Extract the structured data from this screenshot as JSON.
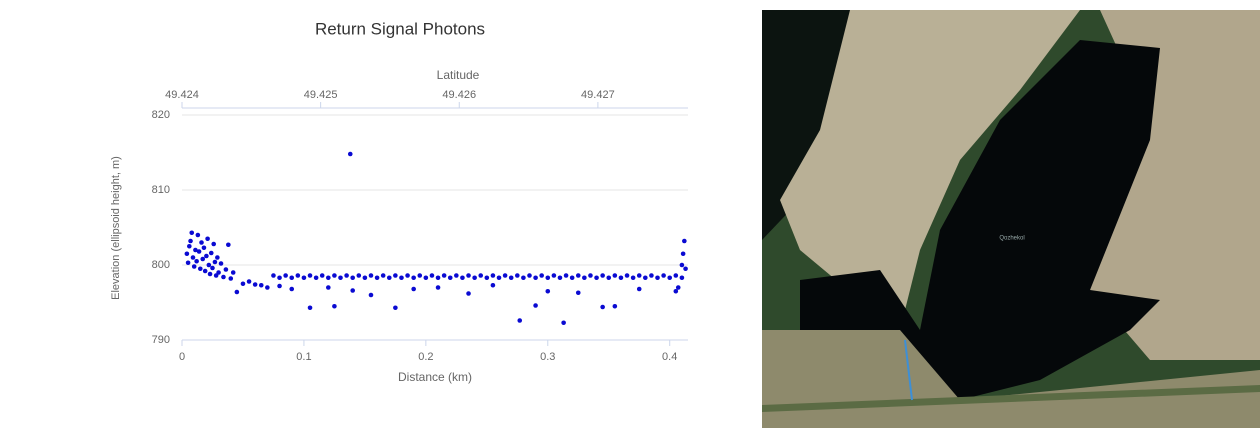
{
  "chart_data": {
    "type": "scatter",
    "title": "Return Signal Photons",
    "x_label": "Distance (km)",
    "y_label": "Elevation (ellipsoid height, m)",
    "x2_label": "Latitude",
    "color": "#0a0ad2",
    "grid": true,
    "xlim": [
      0,
      0.415
    ],
    "ylim": [
      790,
      820
    ],
    "xticks": [
      0,
      0.1,
      0.2,
      0.3,
      0.4
    ],
    "yticks": [
      790,
      800,
      810,
      820
    ],
    "x2lim": [
      49.424,
      49.42765
    ],
    "x2ticks": [
      49.424,
      49.425,
      49.426,
      49.427
    ],
    "x": [
      0.004,
      0.005,
      0.006,
      0.007,
      0.008,
      0.009,
      0.01,
      0.011,
      0.012,
      0.013,
      0.014,
      0.015,
      0.016,
      0.017,
      0.018,
      0.019,
      0.02,
      0.021,
      0.022,
      0.023,
      0.024,
      0.025,
      0.026,
      0.027,
      0.028,
      0.029,
      0.03,
      0.032,
      0.034,
      0.036,
      0.038,
      0.04,
      0.042,
      0.045,
      0.05,
      0.055,
      0.06,
      0.065,
      0.07,
      0.075,
      0.085,
      0.095,
      0.105,
      0.115,
      0.125,
      0.135,
      0.145,
      0.155,
      0.165,
      0.175,
      0.185,
      0.195,
      0.205,
      0.215,
      0.225,
      0.235,
      0.245,
      0.255,
      0.265,
      0.275,
      0.285,
      0.295,
      0.305,
      0.315,
      0.325,
      0.335,
      0.345,
      0.355,
      0.365,
      0.375,
      0.385,
      0.395,
      0.405,
      0.08,
      0.09,
      0.1,
      0.11,
      0.12,
      0.13,
      0.14,
      0.15,
      0.16,
      0.17,
      0.18,
      0.19,
      0.2,
      0.21,
      0.22,
      0.23,
      0.24,
      0.25,
      0.26,
      0.27,
      0.28,
      0.29,
      0.3,
      0.31,
      0.32,
      0.33,
      0.34,
      0.35,
      0.36,
      0.37,
      0.38,
      0.39,
      0.4,
      0.41,
      0.08,
      0.09,
      0.105,
      0.12,
      0.125,
      0.14,
      0.155,
      0.175,
      0.19,
      0.21,
      0.235,
      0.255,
      0.277,
      0.29,
      0.3,
      0.313,
      0.325,
      0.345,
      0.355,
      0.375,
      0.405,
      0.407,
      0.138,
      0.41,
      0.412,
      0.411,
      0.413
    ],
    "values": [
      801.5,
      800.3,
      802.5,
      803.2,
      804.3,
      801.0,
      799.8,
      802.0,
      800.5,
      804.0,
      801.8,
      799.5,
      803.0,
      800.8,
      802.3,
      799.2,
      801.2,
      803.5,
      800.0,
      798.8,
      801.6,
      799.6,
      802.8,
      800.4,
      798.6,
      801.0,
      799.0,
      800.2,
      798.4,
      799.4,
      802.7,
      798.2,
      799.0,
      796.4,
      797.5,
      797.8,
      797.4,
      797.3,
      797.0,
      798.6,
      798.6,
      798.6,
      798.6,
      798.6,
      798.6,
      798.6,
      798.6,
      798.6,
      798.6,
      798.6,
      798.6,
      798.6,
      798.6,
      798.6,
      798.6,
      798.6,
      798.6,
      798.6,
      798.6,
      798.6,
      798.6,
      798.6,
      798.6,
      798.6,
      798.6,
      798.6,
      798.6,
      798.6,
      798.6,
      798.6,
      798.6,
      798.6,
      798.6,
      798.3,
      798.3,
      798.3,
      798.3,
      798.3,
      798.3,
      798.3,
      798.3,
      798.3,
      798.3,
      798.3,
      798.3,
      798.3,
      798.3,
      798.3,
      798.3,
      798.3,
      798.3,
      798.3,
      798.3,
      798.3,
      798.3,
      798.3,
      798.3,
      798.3,
      798.3,
      798.3,
      798.3,
      798.3,
      798.3,
      798.3,
      798.3,
      798.3,
      798.3,
      797.2,
      796.8,
      794.3,
      797.0,
      794.5,
      796.6,
      796.0,
      794.3,
      796.8,
      797.0,
      796.2,
      797.3,
      792.6,
      794.6,
      796.5,
      792.3,
      796.3,
      794.4,
      794.5,
      796.8,
      796.5,
      797.0,
      814.8,
      800.0,
      803.2,
      801.5,
      799.5
    ]
  },
  "map": {
    "label": "Qozhekol"
  }
}
